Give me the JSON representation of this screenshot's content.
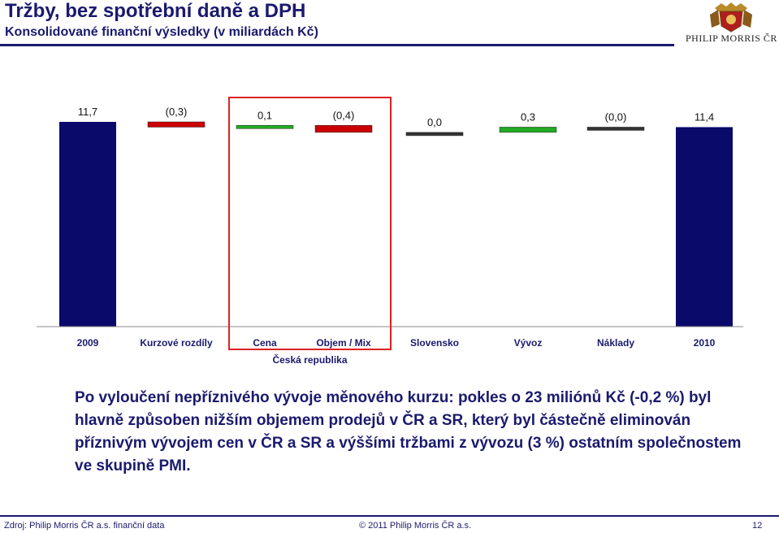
{
  "header": {
    "title": "Tržby, bez spotřební daně a DPH",
    "subtitle": "Konsolidované finanční výsledky (v miliardách Kč)",
    "logo_text": "PHILIP MORRIS ČR"
  },
  "chart_data": {
    "type": "bar",
    "subtype": "waterfall",
    "categories": [
      "2009",
      "Kurzové rozdíly",
      "Cena",
      "Objem / Mix",
      "Slovensko",
      "Vývoz",
      "Náklady",
      "2010"
    ],
    "values": [
      11.7,
      -0.3,
      0.1,
      -0.4,
      0.0,
      0.3,
      0.0,
      11.4
    ],
    "data_labels": [
      "11,7",
      "(0,3)",
      "0,1",
      "(0,4)",
      "0,0",
      "0,3",
      "(0,0)",
      "11,4"
    ],
    "group_label": "Česká republika",
    "group_members": [
      "Cena",
      "Objem / Mix"
    ],
    "colors": {
      "total": "#0a0a6b",
      "decrease": "#cc0000",
      "increase": "#22aa22",
      "neutral": "#333333",
      "highlight_box": "#dd2222"
    }
  },
  "body": {
    "text": "Po vyloučení nepříznivého vývoje měnového kurzu: pokles o 23 miliónů Kč (-0,2 %) byl hlavně způsoben nižším objemem prodejů v ČR a SR, který byl částečně eliminován příznivým vývojem cen v ČR a SR a výššími tržbami z vývozu (3 %) ostatním společnostem ve skupině PMI."
  },
  "footer": {
    "source": "Zdroj: Philip Morris ČR a.s. finanční data",
    "copyright": "© 2011 Philip Morris ČR a.s.",
    "page": "12"
  }
}
